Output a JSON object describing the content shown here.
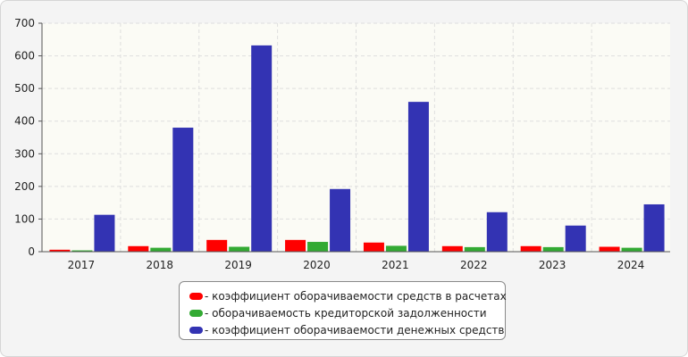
{
  "chart_data": {
    "type": "bar",
    "categories": [
      "2017",
      "2018",
      "2019",
      "2020",
      "2021",
      "2022",
      "2023",
      "2024"
    ],
    "series": [
      {
        "name": "- коэффициент оборачиваемости средств в расчетах",
        "color": "#ff0000",
        "values": [
          6,
          17,
          36,
          36,
          28,
          17,
          17,
          15
        ]
      },
      {
        "name": "- оборачиваемость кредиторской задолженности",
        "color": "#33aa33",
        "values": [
          4,
          12,
          15,
          30,
          18,
          14,
          14,
          12
        ]
      },
      {
        "name": "- коэффициент оборачиваемости денежных средств",
        "color": "#3333b3",
        "values": [
          113,
          380,
          632,
          192,
          459,
          121,
          80,
          145
        ]
      }
    ],
    "ylim": [
      0,
      700
    ],
    "yticks": [
      0,
      100,
      200,
      300,
      400,
      500,
      600,
      700
    ],
    "grid": true,
    "legend_position": "bottom-center"
  }
}
